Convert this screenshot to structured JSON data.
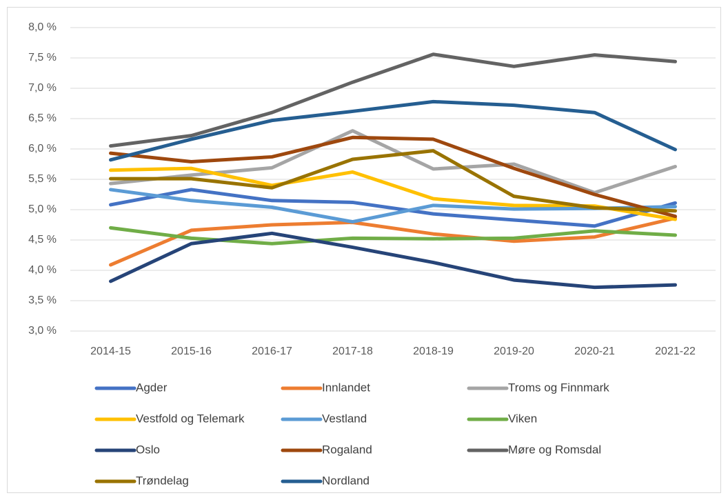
{
  "chart_data": {
    "type": "line",
    "categories": [
      "2014-15",
      "2015-16",
      "2016-17",
      "2017-18",
      "2018-19",
      "2019-20",
      "2020-21",
      "2021-22"
    ],
    "ylim": [
      3.0,
      8.0
    ],
    "yticks": [
      {
        "value": 3.0,
        "label": "3,0 %"
      },
      {
        "value": 3.5,
        "label": "3,5 %"
      },
      {
        "value": 4.0,
        "label": "4,0 %"
      },
      {
        "value": 4.5,
        "label": "4,5 %"
      },
      {
        "value": 5.0,
        "label": "5,0 %"
      },
      {
        "value": 5.5,
        "label": "5,5 %"
      },
      {
        "value": 6.0,
        "label": "6,0 %"
      },
      {
        "value": 6.5,
        "label": "6,5 %"
      },
      {
        "value": 7.0,
        "label": "7,0 %"
      },
      {
        "value": 7.5,
        "label": "7,5 %"
      },
      {
        "value": 8.0,
        "label": "8,0 %"
      }
    ],
    "grid": true,
    "legend": "bottom",
    "series": [
      {
        "name": "Agder",
        "color": "#4472c4",
        "values": [
          5.08,
          5.33,
          5.15,
          5.12,
          4.93,
          4.83,
          4.73,
          5.11
        ]
      },
      {
        "name": "Innlandet",
        "color": "#ed7d31",
        "values": [
          4.09,
          4.66,
          4.75,
          4.79,
          4.6,
          4.48,
          4.55,
          4.86
        ]
      },
      {
        "name": "Troms og Finnmark",
        "color": "#a5a5a5",
        "values": [
          5.43,
          5.57,
          5.69,
          6.3,
          5.67,
          5.75,
          5.28,
          5.71
        ]
      },
      {
        "name": "Vestfold og Telemark",
        "color": "#ffc000",
        "values": [
          5.65,
          5.68,
          5.4,
          5.62,
          5.18,
          5.07,
          5.06,
          4.84
        ]
      },
      {
        "name": "Vestland",
        "color": "#5b9bd5",
        "values": [
          5.33,
          5.15,
          5.04,
          4.8,
          5.07,
          5.01,
          5.02,
          5.05
        ]
      },
      {
        "name": "Viken",
        "color": "#70ad47",
        "values": [
          4.7,
          4.53,
          4.44,
          4.53,
          4.52,
          4.53,
          4.65,
          4.58
        ]
      },
      {
        "name": "Oslo",
        "color": "#264478",
        "values": [
          3.82,
          4.44,
          4.61,
          4.38,
          4.13,
          3.84,
          3.72,
          3.76
        ]
      },
      {
        "name": "Rogaland",
        "color": "#9e480e",
        "values": [
          5.93,
          5.79,
          5.87,
          6.19,
          6.16,
          5.68,
          5.25,
          4.89
        ]
      },
      {
        "name": "Møre og Romsdal",
        "color": "#636363",
        "values": [
          6.05,
          6.22,
          6.6,
          7.1,
          7.56,
          7.36,
          7.55,
          7.44
        ]
      },
      {
        "name": "Trøndelag",
        "color": "#997300",
        "values": [
          5.51,
          5.51,
          5.36,
          5.83,
          5.97,
          5.22,
          5.03,
          4.98
        ]
      },
      {
        "name": "Nordland",
        "color": "#255e91",
        "values": [
          5.82,
          6.16,
          6.47,
          6.62,
          6.78,
          6.72,
          6.6,
          5.99
        ]
      }
    ]
  }
}
